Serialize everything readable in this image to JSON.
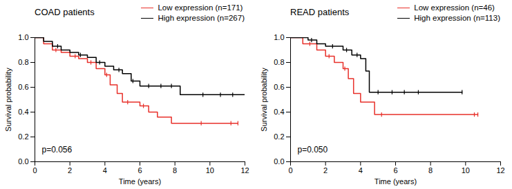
{
  "chart_data": [
    {
      "type": "line",
      "title": "COAD patients",
      "xlabel": "Time (years)",
      "ylabel": "Survival probability",
      "annotation": "p=0.056",
      "xlim": [
        0,
        12
      ],
      "xticks": [
        0,
        2,
        4,
        6,
        8,
        10,
        12
      ],
      "ylim": [
        0,
        1
      ],
      "yticks": [
        {
          "value": 0,
          "label": "0.0"
        },
        {
          "value": 0.2,
          "label": "0.2"
        },
        {
          "value": 0.4,
          "label": "0.4"
        },
        {
          "value": 0.6,
          "label": "0.6"
        },
        {
          "value": 0.8,
          "label": "0.8"
        },
        {
          "value": 1,
          "label": "1.0"
        }
      ],
      "series": [
        {
          "name": "Low expression (n=171)",
          "color": "#e8302a",
          "x": [
            0,
            0.5,
            1,
            1.5,
            2,
            2.5,
            3,
            3.5,
            4,
            4.3,
            4.7,
            5,
            6,
            6.5,
            7,
            7.8,
            11.6
          ],
          "values": [
            1.0,
            0.95,
            0.9,
            0.88,
            0.85,
            0.83,
            0.8,
            0.75,
            0.7,
            0.62,
            0.55,
            0.48,
            0.45,
            0.4,
            0.36,
            0.31,
            0.31
          ],
          "censored_x": [
            1.2,
            2.3,
            3.2,
            4.1,
            5.3,
            6.2,
            9.5,
            11.2,
            11.6
          ],
          "censored_y": [
            0.9,
            0.85,
            0.8,
            0.7,
            0.48,
            0.45,
            0.31,
            0.31,
            0.31
          ]
        },
        {
          "name": "High expression (n=267)",
          "color": "#000000",
          "x": [
            0,
            0.5,
            1,
            1.5,
            2,
            2.5,
            3,
            3.5,
            4,
            4.5,
            5,
            5.5,
            6,
            8.3,
            12
          ],
          "values": [
            1.0,
            0.97,
            0.93,
            0.9,
            0.88,
            0.86,
            0.84,
            0.8,
            0.77,
            0.74,
            0.71,
            0.65,
            0.61,
            0.54,
            0.54
          ],
          "censored_x": [
            1.3,
            2.6,
            3.7,
            4.8,
            5.6,
            6.5,
            7.2,
            7.8,
            9.6,
            10.6,
            11.3
          ],
          "censored_y": [
            0.93,
            0.86,
            0.8,
            0.74,
            0.65,
            0.61,
            0.61,
            0.61,
            0.54,
            0.54,
            0.54
          ]
        }
      ]
    },
    {
      "type": "line",
      "title": "READ patients",
      "xlabel": "Time (years)",
      "ylabel": "Survival probability",
      "annotation": "p=0.050",
      "xlim": [
        0,
        12
      ],
      "xticks": [
        0,
        2,
        4,
        6,
        8,
        10,
        12
      ],
      "ylim": [
        0,
        1
      ],
      "yticks": [
        {
          "value": 0,
          "label": "0.0"
        },
        {
          "value": 0.2,
          "label": "0.2"
        },
        {
          "value": 0.4,
          "label": "0.4"
        },
        {
          "value": 0.6,
          "label": "0.6"
        },
        {
          "value": 0.8,
          "label": "0.8"
        },
        {
          "value": 1,
          "label": "1.0"
        }
      ],
      "series": [
        {
          "name": "Low expression (n=46)",
          "color": "#e8302a",
          "x": [
            0,
            0.7,
            1.5,
            2,
            2.5,
            3,
            3.3,
            3.6,
            4,
            4.8,
            10.7
          ],
          "values": [
            1.0,
            0.95,
            0.9,
            0.85,
            0.8,
            0.75,
            0.67,
            0.55,
            0.48,
            0.38,
            0.38
          ],
          "censored_x": [
            1.1,
            2.2,
            3.1,
            5.2,
            10.5,
            10.7
          ],
          "censored_y": [
            0.95,
            0.85,
            0.75,
            0.38,
            0.38,
            0.38
          ]
        },
        {
          "name": "High expression (n=113)",
          "color": "#000000",
          "x": [
            0,
            1,
            1.5,
            2,
            3,
            3.5,
            4,
            4.3,
            4.5,
            9.8
          ],
          "values": [
            1.0,
            0.98,
            0.95,
            0.93,
            0.9,
            0.86,
            0.83,
            0.73,
            0.56,
            0.56
          ],
          "censored_x": [
            1.2,
            2.4,
            3.2,
            3.8,
            5.0,
            5.8,
            6.5,
            7.3,
            9.8
          ],
          "censored_y": [
            0.98,
            0.93,
            0.9,
            0.86,
            0.56,
            0.56,
            0.56,
            0.56,
            0.56
          ]
        }
      ]
    }
  ]
}
